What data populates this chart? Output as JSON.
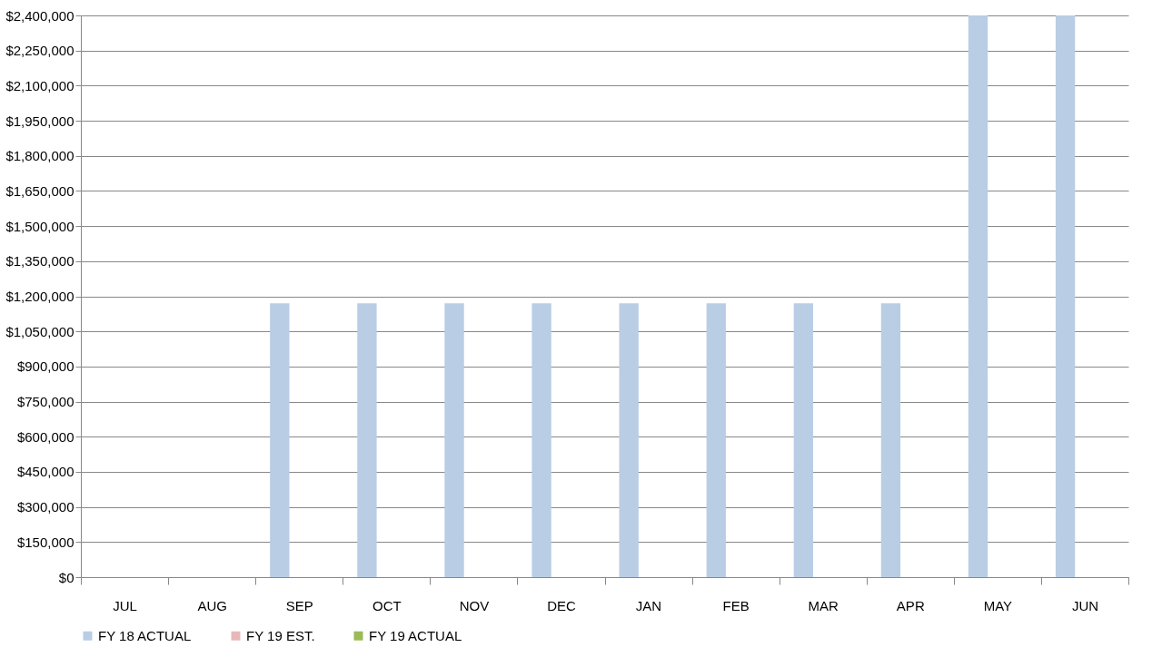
{
  "chart_data": {
    "type": "bar",
    "categories": [
      "JUL",
      "AUG",
      "SEP",
      "OCT",
      "NOV",
      "DEC",
      "JAN",
      "FEB",
      "MAR",
      "APR",
      "MAY",
      "JUN"
    ],
    "series": [
      {
        "name": "FY 18 ACTUAL",
        "color": "#b9cde5",
        "values": [
          0,
          0,
          1170000,
          1170000,
          1170000,
          1170000,
          1170000,
          1170000,
          1170000,
          1170000,
          2400000,
          2400000
        ]
      },
      {
        "name": "FY 19 EST.",
        "color": "#e6b9b8",
        "values": [
          0,
          0,
          0,
          0,
          0,
          0,
          0,
          0,
          0,
          0,
          0,
          0
        ]
      },
      {
        "name": "FY 19 ACTUAL",
        "color": "#9bbb59",
        "values": [
          0,
          0,
          0,
          0,
          0,
          0,
          0,
          0,
          0,
          0,
          0,
          0
        ]
      }
    ],
    "ylim": [
      0,
      2400000
    ],
    "yticks": [
      {
        "value": 0,
        "label": "$0"
      },
      {
        "value": 150000,
        "label": "$150,000"
      },
      {
        "value": 300000,
        "label": "$300,000"
      },
      {
        "value": 450000,
        "label": "$450,000"
      },
      {
        "value": 600000,
        "label": "$600,000"
      },
      {
        "value": 750000,
        "label": "$750,000"
      },
      {
        "value": 900000,
        "label": "$900,000"
      },
      {
        "value": 1050000,
        "label": "$1,050,000"
      },
      {
        "value": 1200000,
        "label": "$1,200,000"
      },
      {
        "value": 1350000,
        "label": "$1,350,000"
      },
      {
        "value": 1500000,
        "label": "$1,500,000"
      },
      {
        "value": 1650000,
        "label": "$1,650,000"
      },
      {
        "value": 1800000,
        "label": "$1,800,000"
      },
      {
        "value": 1950000,
        "label": "$1,950,000"
      },
      {
        "value": 2100000,
        "label": "$2,100,000"
      },
      {
        "value": 2250000,
        "label": "$2,250,000"
      },
      {
        "value": 2400000,
        "label": "$2,400,000"
      }
    ],
    "grid": "y",
    "legend": "bottom"
  }
}
